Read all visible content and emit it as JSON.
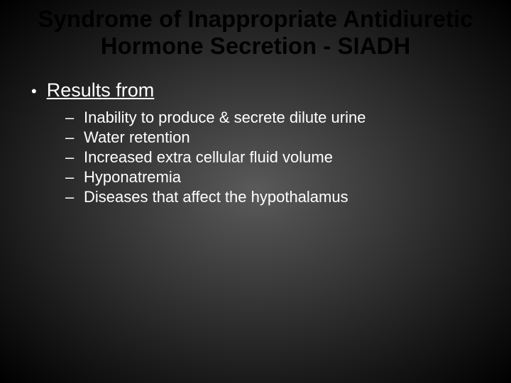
{
  "title": "Syndrome of Inappropriate Antidiuretic Hormone Secretion - SIADH",
  "title_fontsize": 33,
  "title_color": "#000000",
  "section": {
    "heading": "Results from",
    "heading_fontsize": 27,
    "bullet_char": "•",
    "items": [
      "Inability to produce & secrete dilute urine",
      "Water retention",
      "Increased extra cellular fluid volume",
      "Hyponatremia",
      "Diseases that affect the hypothalamus"
    ],
    "item_fontsize": 22,
    "dash_char": "–"
  },
  "background": {
    "type": "radial-gradient",
    "center_color": "#5a5a5a",
    "mid_color": "#3a3a3a",
    "outer_color": "#1a1a1a",
    "edge_color": "#000000"
  },
  "text_color": "#ffffff"
}
